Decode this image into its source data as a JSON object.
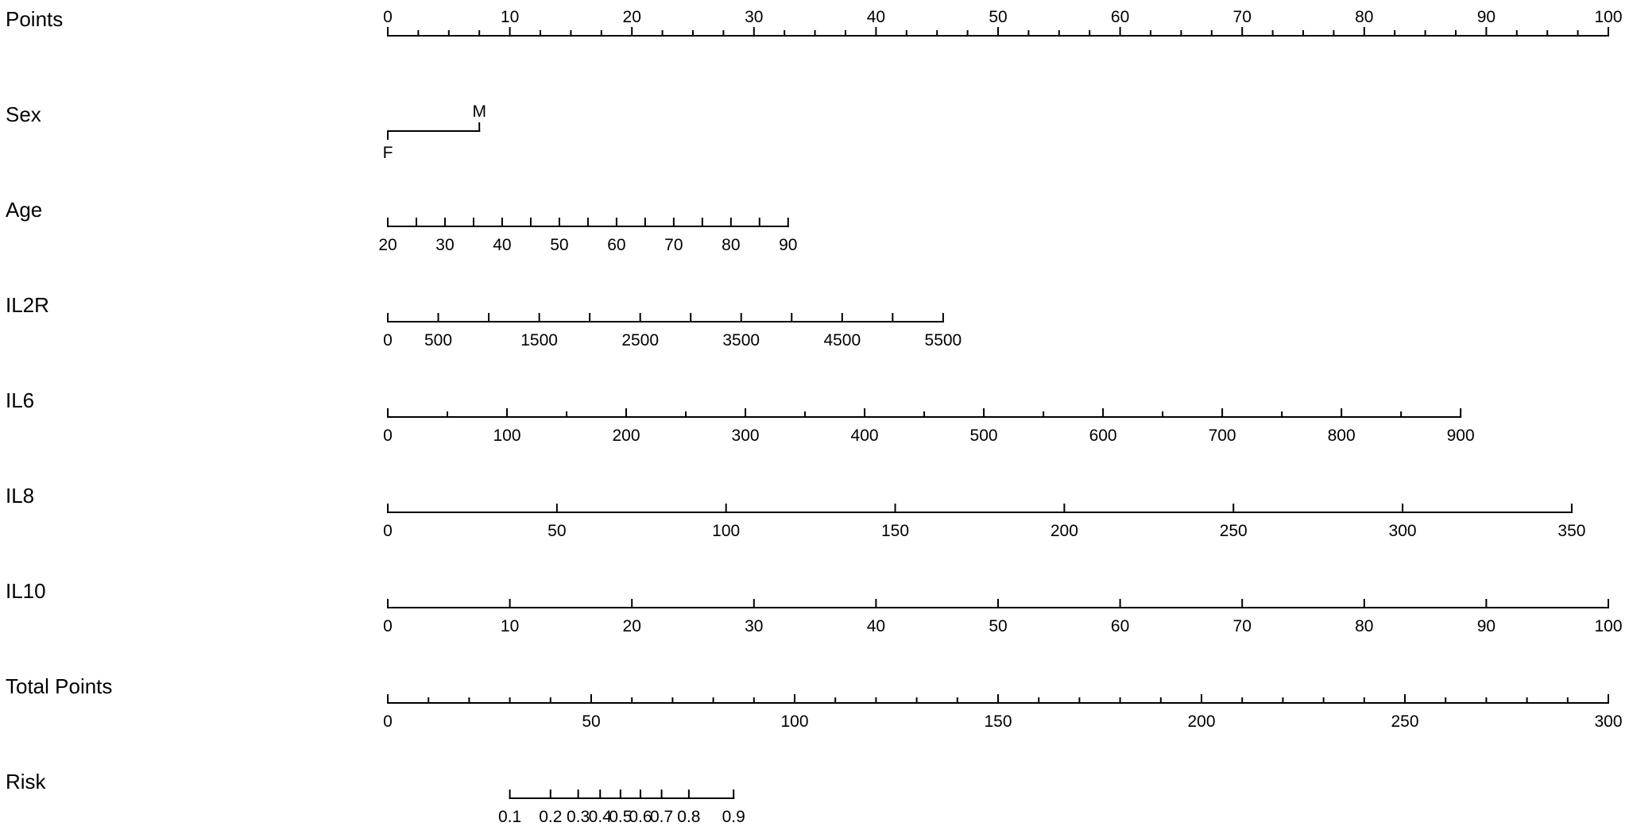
{
  "chart_data": {
    "type": "nomogram",
    "rows": [
      {
        "name": "Points",
        "label": "Points",
        "kind": "scale",
        "labels_above": true,
        "range": [
          0,
          100
        ],
        "ticks": [
          0,
          10,
          20,
          30,
          40,
          50,
          60,
          70,
          80,
          90,
          100
        ],
        "tick_labels": [
          "0",
          "10",
          "20",
          "30",
          "40",
          "50",
          "60",
          "70",
          "80",
          "90",
          "100"
        ],
        "minor_step": 2.5
      },
      {
        "name": "Sex",
        "label": "Sex",
        "kind": "categorical",
        "levels": [
          {
            "label": "F",
            "points": 0
          },
          {
            "label": "M",
            "points": 7.5
          }
        ]
      },
      {
        "name": "Age",
        "label": "Age",
        "kind": "variable",
        "values": [
          20,
          25,
          30,
          35,
          40,
          45,
          50,
          55,
          60,
          65,
          70,
          75,
          80,
          85,
          90
        ],
        "labels": [
          "20",
          "",
          "30",
          "",
          "40",
          "",
          "50",
          "",
          "60",
          "",
          "70",
          "",
          "80",
          "",
          "90"
        ],
        "points_range": [
          0,
          32.8
        ]
      },
      {
        "name": "IL2R",
        "label": "IL2R",
        "kind": "variable",
        "values": [
          0,
          500,
          1000,
          1500,
          2000,
          2500,
          3000,
          3500,
          4000,
          4500,
          5000,
          5500
        ],
        "labels": [
          "0",
          "500",
          "",
          "1500",
          "",
          "2500",
          "",
          "3500",
          "",
          "4500",
          "",
          "5500"
        ],
        "points_range": [
          0,
          45.5
        ]
      },
      {
        "name": "IL6",
        "label": "IL6",
        "kind": "variable",
        "values": [
          0,
          100,
          200,
          300,
          400,
          500,
          600,
          700,
          800,
          900
        ],
        "labels": [
          "0",
          "100",
          "200",
          "300",
          "400",
          "500",
          "600",
          "700",
          "800",
          "900"
        ],
        "minor_step": 50,
        "points_range": [
          0,
          87.9
        ]
      },
      {
        "name": "IL8",
        "label": "IL8",
        "kind": "variable",
        "values": [
          0,
          50,
          100,
          150,
          200,
          250,
          300,
          350
        ],
        "labels": [
          "0",
          "50",
          "100",
          "150",
          "200",
          "250",
          "300",
          "350"
        ],
        "axis_max": 350,
        "points_range": [
          0,
          97.0
        ]
      },
      {
        "name": "IL10",
        "label": "IL10",
        "kind": "variable",
        "values": [
          0,
          10,
          20,
          30,
          40,
          50,
          60,
          70,
          80,
          90,
          100
        ],
        "labels": [
          "0",
          "10",
          "20",
          "30",
          "40",
          "50",
          "60",
          "70",
          "80",
          "90",
          "100"
        ],
        "points_range": [
          0,
          100
        ]
      },
      {
        "name": "Total Points",
        "label": "Total Points",
        "kind": "total",
        "range": [
          0,
          300
        ],
        "ticks": [
          0,
          50,
          100,
          150,
          200,
          250,
          300
        ],
        "tick_labels": [
          "0",
          "50",
          "100",
          "150",
          "200",
          "250",
          "300"
        ],
        "minor_step": 10
      },
      {
        "name": "Risk",
        "label": "Risk",
        "kind": "risk",
        "values": [
          0.1,
          0.2,
          0.3,
          0.4,
          0.5,
          0.6,
          0.7,
          0.8,
          0.9
        ],
        "labels": [
          "0.1",
          "0.2",
          "0.3",
          "0.4",
          "0.5",
          "0.6",
          "0.7",
          "0.8",
          "0.9"
        ],
        "total_points": [
          30,
          40,
          46.8,
          52.2,
          57.2,
          62.1,
          67.3,
          74,
          85
        ]
      }
    ]
  }
}
